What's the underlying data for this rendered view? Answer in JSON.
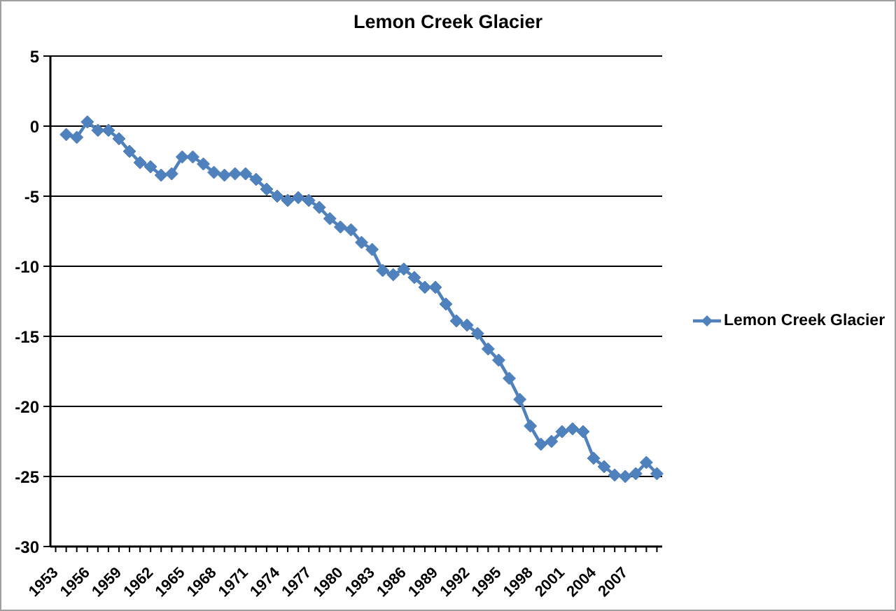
{
  "chart_data": {
    "type": "line",
    "title": "Lemon Creek Glacier",
    "categories": [
      "1953",
      null,
      null,
      "1956",
      null,
      null,
      "1959",
      null,
      null,
      "1962",
      null,
      null,
      "1965",
      null,
      null,
      "1968",
      null,
      null,
      "1971",
      null,
      null,
      "1974",
      null,
      null,
      "1977",
      null,
      null,
      "1980",
      null,
      null,
      "1983",
      null,
      null,
      "1986",
      null,
      null,
      "1989",
      null,
      null,
      "1992",
      null,
      null,
      "1995",
      null,
      null,
      "1998",
      null,
      null,
      "2001",
      null,
      null,
      "2004",
      null,
      null,
      "2007",
      null,
      null,
      null
    ],
    "series": [
      {
        "name": "Lemon Creek Glacier",
        "color": "#4f81bd",
        "values": [
          null,
          -0.6,
          -0.8,
          0.3,
          -0.3,
          -0.3,
          -0.9,
          -1.8,
          -2.6,
          -2.9,
          -3.5,
          -3.4,
          -2.2,
          -2.2,
          -2.7,
          -3.3,
          -3.5,
          -3.4,
          -3.4,
          -3.8,
          -4.5,
          -5.0,
          -5.3,
          -5.1,
          -5.3,
          -5.8,
          -6.6,
          -7.2,
          -7.4,
          -8.3,
          -8.8,
          -10.3,
          -10.6,
          -10.2,
          -10.8,
          -11.5,
          -11.5,
          -12.7,
          -13.9,
          -14.2,
          -14.8,
          -15.9,
          -16.7,
          -18.0,
          -19.5,
          -21.4,
          -22.7,
          -22.5,
          -21.8,
          -21.6,
          -21.8,
          -23.7,
          -24.3,
          -24.9,
          -25.0,
          -24.8,
          -24.0,
          -24.8
        ]
      }
    ],
    "ylim": [
      -30,
      5
    ],
    "yticks": [
      -30,
      -25,
      -20,
      -15,
      -10,
      -5,
      0,
      5
    ],
    "grid": "y",
    "legend": "right",
    "marker": "diamond",
    "line_style": "solid"
  }
}
